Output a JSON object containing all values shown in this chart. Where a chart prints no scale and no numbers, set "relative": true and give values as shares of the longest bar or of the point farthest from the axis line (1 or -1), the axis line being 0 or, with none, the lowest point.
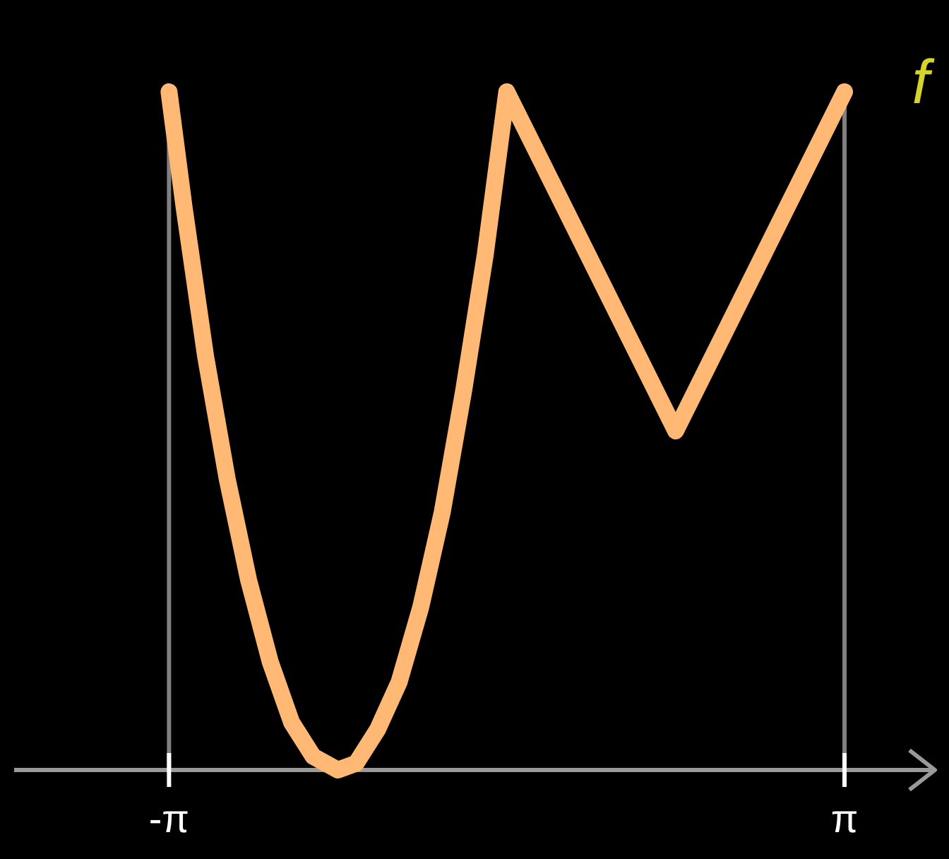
{
  "chart_data": {
    "type": "line",
    "relative": true,
    "marker": "none",
    "line_style": "solid",
    "xlim": [
      -4.58,
      3.98
    ],
    "xticks": [
      {
        "value": -3.14,
        "label": "-π"
      },
      {
        "value": 3.14,
        "label": "π"
      }
    ],
    "ref_lines": [
      {
        "axis": "x",
        "value": -3.14,
        "color": "#808080"
      },
      {
        "axis": "x",
        "value": 3.14,
        "color": "#808080"
      }
    ],
    "annotations": [
      "f"
    ],
    "series": [
      {
        "color": "#ffb974",
        "x": [
          -3.14,
          -3.0,
          -2.8,
          -2.6,
          -2.4,
          -2.2,
          -2.0,
          -1.8,
          -1.57,
          -1.4,
          -1.2,
          -1.0,
          -0.8,
          -0.6,
          -0.4,
          -0.2,
          0,
          1.57,
          3.14
        ],
        "values": [
          1.0,
          0.83,
          0.61,
          0.43,
          0.28,
          0.16,
          0.07,
          0.02,
          0,
          0.01,
          0.06,
          0.13,
          0.24,
          0.38,
          0.56,
          0.76,
          1.0,
          0.5,
          1.0
        ]
      }
    ]
  }
}
